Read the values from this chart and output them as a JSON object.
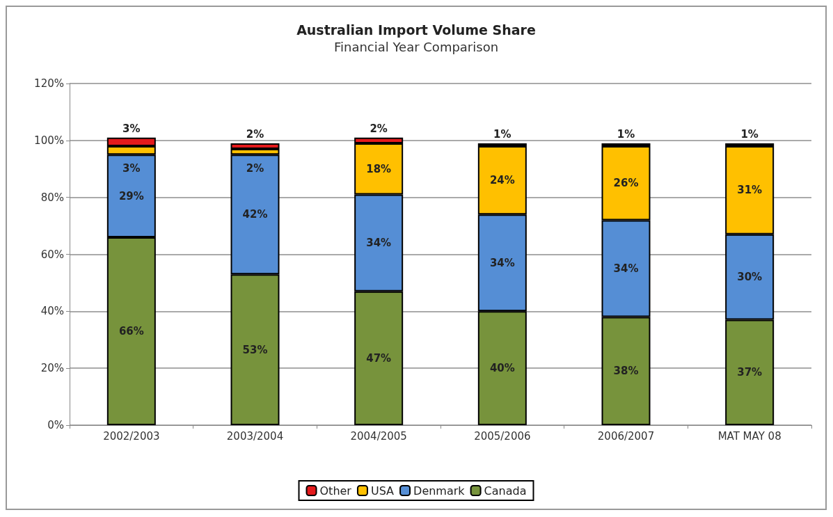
{
  "chart_data": {
    "type": "bar",
    "title": "Australian Import Volume Share",
    "subtitle": "Financial Year Comparison",
    "categories": [
      "2002/2003",
      "2003/2004",
      "2004/2005",
      "2005/2006",
      "2006/2007",
      "MAT MAY 08"
    ],
    "stacked": true,
    "series": [
      {
        "name": "Canada",
        "color": "#77933c",
        "values": [
          66,
          53,
          47,
          40,
          38,
          37
        ],
        "value_labels": [
          "66%",
          "53%",
          "47%",
          "40%",
          "38%",
          "37%"
        ]
      },
      {
        "name": "Denmark",
        "color": "#558ed5",
        "values": [
          29,
          42,
          34,
          34,
          34,
          30
        ],
        "value_labels": [
          "29%",
          "42%",
          "34%",
          "34%",
          "34%",
          "30%"
        ]
      },
      {
        "name": "USA",
        "color": "#ffc000",
        "values": [
          3,
          2,
          18,
          24,
          26,
          31
        ],
        "value_labels": [
          "3%",
          "2%",
          "18%",
          "24%",
          "26%",
          "31%"
        ]
      },
      {
        "name": "Other",
        "color": "#e41a1c",
        "values": [
          3,
          2,
          2,
          1,
          1,
          1
        ],
        "value_labels": [
          "3%",
          "2%",
          "2%",
          "1%",
          "1%",
          "1%"
        ]
      }
    ],
    "ylim": [
      0,
      120
    ],
    "yticks": [
      {
        "value": 0,
        "label": "0%"
      },
      {
        "value": 20,
        "label": "20%"
      },
      {
        "value": 40,
        "label": "40%"
      },
      {
        "value": 60,
        "label": "60%"
      },
      {
        "value": 80,
        "label": "80%"
      },
      {
        "value": 100,
        "label": "100%"
      },
      {
        "value": 120,
        "label": "120%"
      }
    ],
    "grid": "y",
    "legend": "bottom"
  }
}
